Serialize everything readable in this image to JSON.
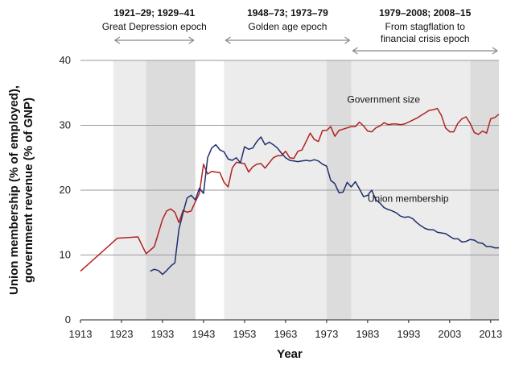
{
  "chart_data": {
    "type": "line",
    "xlabel": "Year",
    "ylabel_lines": [
      "Union membership (% of employed),",
      "government revenue (% of GNP)"
    ],
    "xlim": [
      1913,
      2015
    ],
    "ylim": [
      0,
      40
    ],
    "x_ticks": [
      1913,
      1923,
      1933,
      1943,
      1953,
      1963,
      1973,
      1983,
      1993,
      2003,
      2013
    ],
    "y_ticks": [
      0,
      10,
      20,
      30,
      40
    ],
    "grid": "horizontal",
    "colors": {
      "government": "#b22222",
      "union": "#1f2f6e",
      "band_light": "#ececec",
      "band_dark": "#dcdcdc"
    },
    "shaded_periods": [
      {
        "start": 1921,
        "end": 1929,
        "shade": "light"
      },
      {
        "start": 1929,
        "end": 1941,
        "shade": "dark"
      },
      {
        "start": 1948,
        "end": 1973,
        "shade": "light"
      },
      {
        "start": 1973,
        "end": 1979,
        "shade": "dark"
      },
      {
        "start": 1979,
        "end": 2008,
        "shade": "light"
      },
      {
        "start": 2008,
        "end": 2015,
        "shade": "dark"
      }
    ],
    "epochs": [
      {
        "title": "1921–29; 1929–41",
        "subtitle": [
          "Great Depression epoch"
        ],
        "start": 1921,
        "end": 1941
      },
      {
        "title": "1948–73; 1973–79",
        "subtitle": [
          "Golden age epoch"
        ],
        "start": 1948,
        "end": 1979
      },
      {
        "title": "1979–2008; 2008–15",
        "subtitle": [
          "From stagflation to",
          "financial crisis epoch"
        ],
        "start": 1979,
        "end": 2015
      }
    ],
    "series": [
      {
        "name": "Government size",
        "label_at": [
          1978,
          33.5
        ],
        "points": [
          [
            1913,
            7.5
          ],
          [
            1922,
            12.6
          ],
          [
            1927,
            12.8
          ],
          [
            1929,
            10.2
          ],
          [
            1931,
            11.3
          ],
          [
            1933,
            15.5
          ],
          [
            1934,
            16.8
          ],
          [
            1935,
            17.1
          ],
          [
            1936,
            16.6
          ],
          [
            1937,
            15.0
          ],
          [
            1938,
            16.9
          ],
          [
            1939,
            16.6
          ],
          [
            1940,
            16.8
          ],
          [
            1941,
            18.2
          ],
          [
            1942,
            19.5
          ],
          [
            1943,
            24.0
          ],
          [
            1944,
            22.5
          ],
          [
            1945,
            22.9
          ],
          [
            1946,
            22.8
          ],
          [
            1947,
            22.7
          ],
          [
            1948,
            21.2
          ],
          [
            1949,
            20.5
          ],
          [
            1950,
            23.4
          ],
          [
            1951,
            24.3
          ],
          [
            1952,
            24.2
          ],
          [
            1953,
            24.1
          ],
          [
            1954,
            22.8
          ],
          [
            1955,
            23.6
          ],
          [
            1956,
            24.0
          ],
          [
            1957,
            24.1
          ],
          [
            1958,
            23.4
          ],
          [
            1959,
            24.2
          ],
          [
            1960,
            25.0
          ],
          [
            1961,
            25.3
          ],
          [
            1962,
            25.3
          ],
          [
            1963,
            26.0
          ],
          [
            1964,
            25.0
          ],
          [
            1965,
            24.9
          ],
          [
            1966,
            26.0
          ],
          [
            1967,
            26.2
          ],
          [
            1968,
            27.5
          ],
          [
            1969,
            28.8
          ],
          [
            1970,
            27.8
          ],
          [
            1971,
            27.5
          ],
          [
            1972,
            29.2
          ],
          [
            1973,
            29.2
          ],
          [
            1974,
            29.8
          ],
          [
            1975,
            28.3
          ],
          [
            1976,
            29.2
          ],
          [
            1977,
            29.4
          ],
          [
            1978,
            29.6
          ],
          [
            1979,
            29.8
          ],
          [
            1980,
            29.8
          ],
          [
            1981,
            30.5
          ],
          [
            1982,
            29.9
          ],
          [
            1983,
            29.1
          ],
          [
            1984,
            29.0
          ],
          [
            1985,
            29.6
          ],
          [
            1986,
            29.9
          ],
          [
            1987,
            30.4
          ],
          [
            1988,
            30.1
          ],
          [
            1989,
            30.2
          ],
          [
            1990,
            30.2
          ],
          [
            1991,
            30.1
          ],
          [
            1992,
            30.2
          ],
          [
            1993,
            30.5
          ],
          [
            1994,
            30.8
          ],
          [
            1995,
            31.1
          ],
          [
            1996,
            31.5
          ],
          [
            1997,
            31.9
          ],
          [
            1998,
            32.3
          ],
          [
            1999,
            32.4
          ],
          [
            2000,
            32.6
          ],
          [
            2001,
            31.5
          ],
          [
            2002,
            29.6
          ],
          [
            2003,
            29.0
          ],
          [
            2004,
            29.0
          ],
          [
            2005,
            30.3
          ],
          [
            2006,
            31.0
          ],
          [
            2007,
            31.3
          ],
          [
            2008,
            30.3
          ],
          [
            2009,
            28.9
          ],
          [
            2010,
            28.6
          ],
          [
            2011,
            29.1
          ],
          [
            2012,
            28.8
          ],
          [
            2013,
            31.0
          ],
          [
            2014,
            31.2
          ],
          [
            2015,
            31.7
          ]
        ]
      },
      {
        "name": "Union membership",
        "label_at": [
          1983,
          18.2
        ],
        "points": [
          [
            1930,
            7.5
          ],
          [
            1931,
            7.8
          ],
          [
            1932,
            7.6
          ],
          [
            1933,
            7.0
          ],
          [
            1934,
            7.6
          ],
          [
            1935,
            8.3
          ],
          [
            1936,
            8.8
          ],
          [
            1937,
            14.0
          ],
          [
            1938,
            16.5
          ],
          [
            1939,
            18.8
          ],
          [
            1940,
            19.2
          ],
          [
            1941,
            18.5
          ],
          [
            1942,
            20.3
          ],
          [
            1943,
            19.5
          ],
          [
            1944,
            25.0
          ],
          [
            1945,
            26.5
          ],
          [
            1946,
            27.0
          ],
          [
            1947,
            26.2
          ],
          [
            1948,
            25.9
          ],
          [
            1949,
            24.8
          ],
          [
            1950,
            24.6
          ],
          [
            1951,
            25.0
          ],
          [
            1952,
            24.2
          ],
          [
            1953,
            26.7
          ],
          [
            1954,
            26.3
          ],
          [
            1955,
            26.5
          ],
          [
            1956,
            27.5
          ],
          [
            1957,
            28.2
          ],
          [
            1958,
            27.0
          ],
          [
            1959,
            27.4
          ],
          [
            1960,
            27.0
          ],
          [
            1961,
            26.5
          ],
          [
            1962,
            25.7
          ],
          [
            1963,
            25.0
          ],
          [
            1964,
            24.6
          ],
          [
            1965,
            24.5
          ],
          [
            1966,
            24.4
          ],
          [
            1967,
            24.5
          ],
          [
            1968,
            24.6
          ],
          [
            1969,
            24.5
          ],
          [
            1970,
            24.7
          ],
          [
            1971,
            24.5
          ],
          [
            1972,
            24.0
          ],
          [
            1973,
            23.7
          ],
          [
            1974,
            21.5
          ],
          [
            1975,
            21.0
          ],
          [
            1976,
            19.6
          ],
          [
            1977,
            19.7
          ],
          [
            1978,
            21.2
          ],
          [
            1979,
            20.5
          ],
          [
            1980,
            21.3
          ],
          [
            1981,
            20.2
          ],
          [
            1982,
            19.0
          ],
          [
            1983,
            19.2
          ],
          [
            1984,
            20.0
          ],
          [
            1985,
            18.5
          ],
          [
            1986,
            18.0
          ],
          [
            1987,
            17.3
          ],
          [
            1988,
            17.0
          ],
          [
            1989,
            16.8
          ],
          [
            1990,
            16.5
          ],
          [
            1991,
            16.0
          ],
          [
            1992,
            15.8
          ],
          [
            1993,
            15.9
          ],
          [
            1994,
            15.6
          ],
          [
            1995,
            15.0
          ],
          [
            1996,
            14.5
          ],
          [
            1997,
            14.1
          ],
          [
            1998,
            13.9
          ],
          [
            1999,
            13.9
          ],
          [
            2000,
            13.5
          ],
          [
            2001,
            13.4
          ],
          [
            2002,
            13.3
          ],
          [
            2003,
            12.9
          ],
          [
            2004,
            12.5
          ],
          [
            2005,
            12.5
          ],
          [
            2006,
            12.0
          ],
          [
            2007,
            12.1
          ],
          [
            2008,
            12.4
          ],
          [
            2009,
            12.3
          ],
          [
            2010,
            11.9
          ],
          [
            2011,
            11.8
          ],
          [
            2012,
            11.3
          ],
          [
            2013,
            11.3
          ],
          [
            2014,
            11.1
          ],
          [
            2015,
            11.1
          ]
        ]
      }
    ]
  }
}
